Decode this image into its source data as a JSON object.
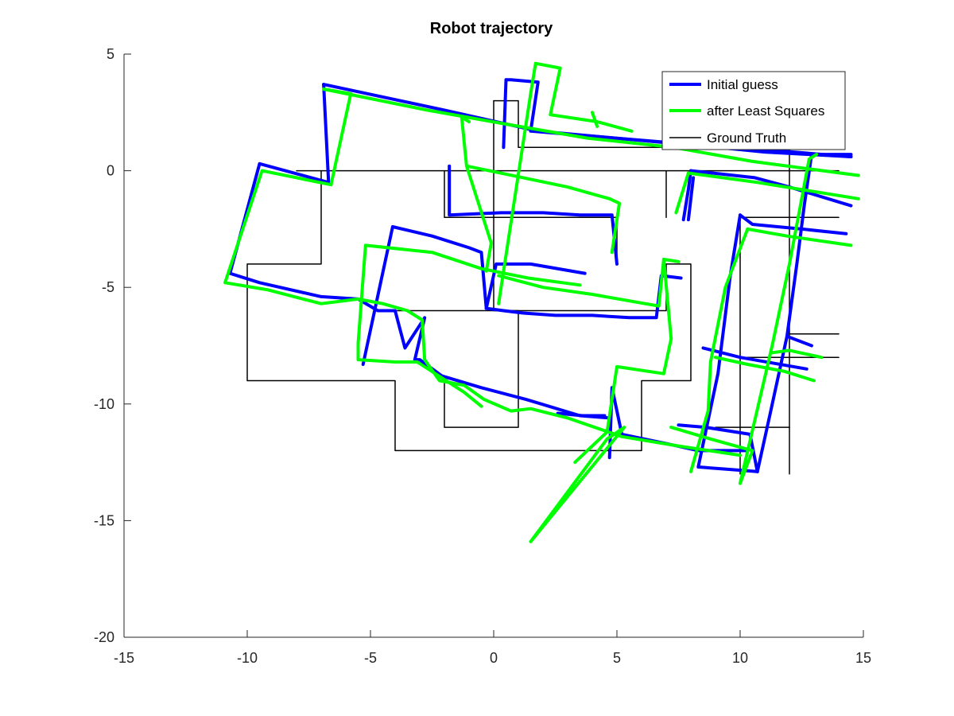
{
  "chart_data": {
    "type": "line",
    "title": "Robot trajectory",
    "xlabel": "",
    "ylabel": "",
    "xlim": [
      -15,
      15
    ],
    "ylim": [
      -20,
      5
    ],
    "xticks": [
      -15,
      -10,
      -5,
      0,
      5,
      10,
      15
    ],
    "yticks": [
      5,
      0,
      -5,
      -10,
      -15,
      -20
    ],
    "grid": false,
    "legend_position": "top-right",
    "series": [
      {
        "name": "Initial guess",
        "color": "#0000ff",
        "segments": [
          [
            [
              -6.9,
              3.7
            ],
            [
              -2,
              2.6
            ],
            [
              1.8,
              1.7
            ],
            [
              7,
              1.2
            ],
            [
              11,
              0.9
            ],
            [
              14.5,
              0.6
            ]
          ],
          [
            [
              -6.9,
              3.7
            ],
            [
              -6.7,
              -0.5
            ],
            [
              -9.5,
              0.3
            ],
            [
              -10.7,
              -4.4
            ],
            [
              -9.5,
              -4.8
            ],
            [
              -7,
              -5.4
            ],
            [
              -5.5,
              -5.5
            ],
            [
              -4.7,
              -6
            ],
            [
              -4,
              -6
            ],
            [
              -3.6,
              -7.6
            ],
            [
              -2.8,
              -6.3
            ],
            [
              -3.2,
              -8.1
            ],
            [
              -3,
              -8.1
            ],
            [
              -2.1,
              -8.8
            ],
            [
              -0.5,
              -9.3
            ],
            [
              1.3,
              -9.8
            ],
            [
              3.5,
              -10.5
            ],
            [
              4.7,
              -10.6
            ]
          ],
          [
            [
              2.6,
              -10.4
            ],
            [
              3.6,
              -10.5
            ],
            [
              4.5,
              -10.5
            ]
          ],
          [
            [
              -5.3,
              -8.3
            ],
            [
              -4.1,
              -2.4
            ],
            [
              -2.5,
              -2.8
            ],
            [
              -1,
              -3.3
            ],
            [
              -0.5,
              -3.5
            ],
            [
              -0.3,
              -5.9
            ],
            [
              0.4,
              -6
            ],
            [
              1.2,
              -6.1
            ],
            [
              2.5,
              -6.2
            ],
            [
              4,
              -6.2
            ],
            [
              5.5,
              -6.3
            ],
            [
              6.6,
              -6.3
            ],
            [
              6.8,
              -4.5
            ],
            [
              7.6,
              -4.6
            ]
          ],
          [
            [
              -0.3,
              -5.9
            ],
            [
              0.1,
              -4.0
            ],
            [
              1.5,
              -4.0
            ],
            [
              3.7,
              -4.4
            ]
          ],
          [
            [
              -1.8,
              0.2
            ],
            [
              -1.8,
              -1.9
            ],
            [
              0.3,
              -1.8
            ],
            [
              2.0,
              -1.8
            ],
            [
              3.5,
              -1.9
            ],
            [
              4.8,
              -1.9
            ],
            [
              5.0,
              -4.0
            ]
          ],
          [
            [
              0.5,
              3.9
            ],
            [
              0.7,
              3.9
            ],
            [
              1.8,
              3.8
            ],
            [
              1.5,
              1.7
            ],
            [
              7.2,
              1.2
            ],
            [
              11.0,
              0.8
            ],
            [
              14.5,
              0.6
            ]
          ],
          [
            [
              0.4,
              1.0
            ],
            [
              0.5,
              3.9
            ]
          ],
          [
            [
              8.0,
              0
            ],
            [
              10.6,
              -0.3
            ],
            [
              12,
              -0.7
            ],
            [
              14.5,
              -1.5
            ]
          ],
          [
            [
              7.7,
              -2.1
            ],
            [
              7.9,
              -0.8
            ],
            [
              8.0,
              0
            ]
          ],
          [
            [
              7.9,
              -2.1
            ],
            [
              8.1,
              -0.3
            ]
          ],
          [
            [
              10,
              -1.9
            ],
            [
              10.5,
              -2.3
            ],
            [
              12.5,
              -2.5
            ],
            [
              14.3,
              -2.7
            ]
          ],
          [
            [
              10.0,
              -1.9
            ],
            [
              9.6,
              -4.5
            ],
            [
              9.1,
              -8.7
            ],
            [
              8.3,
              -12.7
            ],
            [
              9.5,
              -12.8
            ],
            [
              10.7,
              -12.9
            ]
          ],
          [
            [
              10.7,
              -12.9
            ],
            [
              11.2,
              -10.5
            ],
            [
              11.9,
              -7.1
            ],
            [
              12.9,
              -7.5
            ]
          ],
          [
            [
              11.9,
              -7.1
            ],
            [
              12.3,
              -4.0
            ],
            [
              12.6,
              -1.5
            ],
            [
              12.9,
              0.7
            ],
            [
              14.5,
              0.7
            ]
          ],
          [
            [
              8.5,
              -7.6
            ],
            [
              10.0,
              -8.0
            ],
            [
              12.7,
              -8.5
            ]
          ],
          [
            [
              4.7,
              -12.3
            ],
            [
              4.8,
              -9.3
            ],
            [
              5.2,
              -11.3
            ],
            [
              7,
              -11.7
            ],
            [
              8.3,
              -12.0
            ],
            [
              10.3,
              -12.0
            ]
          ],
          [
            [
              7.5,
              -10.9
            ],
            [
              8.6,
              -11.0
            ],
            [
              10.4,
              -11.3
            ],
            [
              10.7,
              -12.9
            ]
          ]
        ]
      },
      {
        "name": "after Least Squares",
        "color": "#00ff00",
        "segments": [
          [
            [
              -6.9,
              3.5
            ],
            [
              -2.7,
              2.6
            ],
            [
              0.5,
              2.0
            ],
            [
              3.8,
              1.4
            ],
            [
              7.3,
              1.0
            ],
            [
              10.5,
              0.4
            ],
            [
              14.8,
              -0.2
            ]
          ],
          [
            [
              -6.9,
              3.5
            ],
            [
              -5.8,
              3.3
            ],
            [
              -6.6,
              -0.6
            ],
            [
              -9.4,
              0
            ],
            [
              -10.9,
              -4.8
            ],
            [
              -9.2,
              -5.1
            ],
            [
              -7.0,
              -5.7
            ],
            [
              -5.5,
              -5.5
            ],
            [
              -4.5,
              -5.7
            ],
            [
              -3.5,
              -6.0
            ],
            [
              -2.9,
              -6.4
            ],
            [
              -2.8,
              -8.1
            ],
            [
              -2.2,
              -9.0
            ],
            [
              -1.2,
              -9.2
            ],
            [
              -0.4,
              -9.8
            ],
            [
              0.7,
              -10.3
            ],
            [
              1.5,
              -10.2
            ],
            [
              3.0,
              -10.6
            ],
            [
              5.2,
              -11.4
            ],
            [
              7.5,
              -11.8
            ],
            [
              10.0,
              -12.2
            ]
          ],
          [
            [
              -5.5,
              -7.4
            ],
            [
              -5.5,
              -8.1
            ],
            [
              -4.0,
              -8.2
            ],
            [
              -3.1,
              -8.2
            ],
            [
              -1.2,
              -9.5
            ],
            [
              -0.5,
              -10.1
            ]
          ],
          [
            [
              -5.5,
              -7.4
            ],
            [
              -5.2,
              -3.2
            ],
            [
              -2.5,
              -3.5
            ],
            [
              -0.5,
              -4.2
            ],
            [
              1.4,
              -4.6
            ],
            [
              3.5,
              -4.9
            ]
          ],
          [
            [
              -0.3,
              -4.3
            ],
            [
              -0.1,
              -3.1
            ],
            [
              -1.1,
              0.2
            ],
            [
              1.2,
              -0.3
            ],
            [
              3.0,
              -0.7
            ],
            [
              4.7,
              -1.2
            ],
            [
              5.1,
              -1.4
            ],
            [
              4.8,
              -3.5
            ]
          ],
          [
            [
              -1.3,
              2.3
            ],
            [
              -1.0,
              2.1
            ]
          ],
          [
            [
              -1.3,
              2.3
            ],
            [
              -1.1,
              0.2
            ]
          ],
          [
            [
              0.2,
              -5.7
            ],
            [
              1.5,
              3.3
            ],
            [
              1.7,
              4.6
            ],
            [
              2.7,
              4.4
            ],
            [
              2.3,
              2.4
            ],
            [
              4.2,
              2.1
            ],
            [
              5.6,
              1.7
            ]
          ],
          [
            [
              4.0,
              2.5
            ],
            [
              4.2,
              1.9
            ]
          ],
          [
            [
              0.2,
              -4.5
            ],
            [
              2.0,
              -5.0
            ],
            [
              4.0,
              -5.3
            ],
            [
              6.7,
              -5.8
            ],
            [
              6.9,
              -3.8
            ],
            [
              7.5,
              -3.9
            ]
          ],
          [
            [
              6.9,
              -3.8
            ],
            [
              7.2,
              -7.2
            ],
            [
              6.9,
              -8.7
            ],
            [
              5.0,
              -8.4
            ],
            [
              4.6,
              -11.2
            ],
            [
              3.3,
              -12.5
            ]
          ],
          [
            [
              7.4,
              -1.8
            ],
            [
              7.9,
              -0.1
            ],
            [
              10.7,
              -0.5
            ],
            [
              14.8,
              -1.2
            ]
          ],
          [
            [
              10.3,
              -2.5
            ],
            [
              11.9,
              -2.8
            ],
            [
              14.5,
              -3.2
            ]
          ],
          [
            [
              10.3,
              -2.5
            ],
            [
              9.4,
              -5.0
            ],
            [
              8.8,
              -8.2
            ],
            [
              8.7,
              -10.3
            ],
            [
              8.0,
              -12.9
            ]
          ],
          [
            [
              10.0,
              -13.4
            ],
            [
              11.3,
              -7.5
            ],
            [
              12.0,
              -4.0
            ],
            [
              12.8,
              0.5
            ],
            [
              13.1,
              0.7
            ]
          ],
          [
            [
              9.0,
              -8.0
            ],
            [
              10.3,
              -8.3
            ],
            [
              11.8,
              -8.6
            ],
            [
              13.0,
              -9.0
            ]
          ],
          [
            [
              7.2,
              -11.0
            ],
            [
              8.8,
              -11.5
            ],
            [
              10.5,
              -12.0
            ],
            [
              10.0,
              -13.4
            ]
          ],
          [
            [
              11.3,
              -7.8
            ],
            [
              12.0,
              -7.7
            ],
            [
              13.3,
              -8.0
            ]
          ],
          [
            [
              1.5,
              -15.9
            ],
            [
              4.6,
              -11.5
            ],
            [
              5.3,
              -11.0
            ],
            [
              1.5,
              -15.9
            ]
          ]
        ]
      },
      {
        "name": "Ground Truth",
        "color": "#000000",
        "segments": [
          [
            [
              -8,
              0
            ],
            [
              14,
              0
            ]
          ],
          [
            [
              -7,
              0
            ],
            [
              -7,
              -4
            ],
            [
              -10,
              -4
            ],
            [
              -10,
              -9
            ],
            [
              -4,
              -9
            ],
            [
              -4,
              -12
            ],
            [
              6,
              -12
            ],
            [
              6,
              -9
            ],
            [
              8,
              -9
            ],
            [
              8,
              -4
            ],
            [
              7,
              -4
            ]
          ],
          [
            [
              -2,
              0
            ],
            [
              -2,
              -2
            ],
            [
              5,
              -2
            ],
            [
              5,
              -4
            ]
          ],
          [
            [
              0,
              3
            ],
            [
              1,
              3
            ],
            [
              1,
              1
            ],
            [
              12,
              1
            ],
            [
              12,
              -13
            ]
          ],
          [
            [
              0,
              3
            ],
            [
              0,
              -6
            ],
            [
              7,
              -6
            ],
            [
              7,
              -4
            ]
          ],
          [
            [
              -4,
              -6
            ],
            [
              1,
              -6
            ],
            [
              1,
              -11
            ],
            [
              -2,
              -11
            ],
            [
              -2,
              -9
            ]
          ],
          [
            [
              7,
              0
            ],
            [
              7,
              -2
            ]
          ],
          [
            [
              10,
              -2
            ],
            [
              14,
              -2
            ]
          ],
          [
            [
              10,
              -2
            ],
            [
              10,
              -13
            ]
          ],
          [
            [
              10,
              -8
            ],
            [
              14,
              -8
            ]
          ],
          [
            [
              12,
              -7
            ],
            [
              14,
              -7
            ]
          ],
          [
            [
              9,
              -11
            ],
            [
              12,
              -11
            ]
          ]
        ]
      }
    ]
  }
}
